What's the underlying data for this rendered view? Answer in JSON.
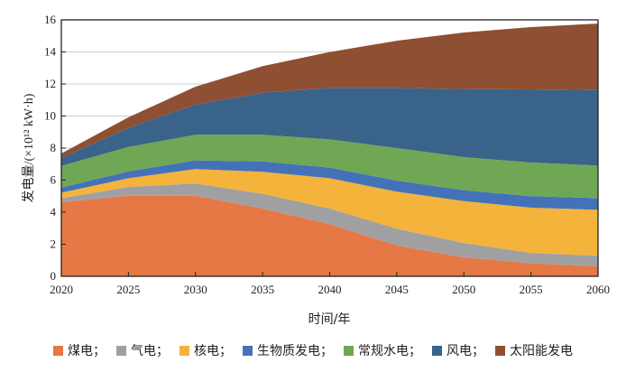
{
  "chart_data": {
    "type": "area",
    "stacked": true,
    "title": "",
    "xlabel": "时间/年",
    "ylabel": "发电量/(×10¹² kW·h)",
    "x": [
      2020,
      2025,
      2030,
      2035,
      2040,
      2045,
      2050,
      2055,
      2060
    ],
    "xlim": [
      2020,
      2060
    ],
    "ylim": [
      0,
      16
    ],
    "yticks": [
      0,
      2,
      4,
      6,
      8,
      10,
      12,
      14,
      16
    ],
    "grid": "horizontal",
    "legend_position": "bottom",
    "series": [
      {
        "name": "煤电；",
        "color": "#E57844",
        "values": [
          4.62,
          5.03,
          5.03,
          4.23,
          3.25,
          1.93,
          1.18,
          0.81,
          0.62
        ]
      },
      {
        "name": "气电；",
        "color": "#A0A0A2",
        "values": [
          0.24,
          0.55,
          0.76,
          0.92,
          0.98,
          1.04,
          0.9,
          0.65,
          0.66
        ]
      },
      {
        "name": "核电；",
        "color": "#F4B33A",
        "values": [
          0.36,
          0.54,
          0.9,
          1.37,
          1.89,
          2.31,
          2.61,
          2.82,
          2.87
        ]
      },
      {
        "name": "生物质发电；",
        "color": "#4472B8",
        "values": [
          0.32,
          0.43,
          0.54,
          0.65,
          0.66,
          0.69,
          0.68,
          0.72,
          0.73
        ]
      },
      {
        "name": "常规水电；",
        "color": "#6FA755",
        "values": [
          1.35,
          1.52,
          1.6,
          1.66,
          1.76,
          2.03,
          2.07,
          2.1,
          2.03
        ]
      },
      {
        "name": "风电；",
        "color": "#3A6389",
        "values": [
          0.49,
          1.19,
          1.89,
          2.62,
          3.22,
          3.76,
          4.24,
          4.56,
          4.71
        ]
      },
      {
        "name": "太阳能发电",
        "color": "#8F4F33",
        "values": [
          0.28,
          0.66,
          1.11,
          1.66,
          2.23,
          2.94,
          3.53,
          3.89,
          4.15
        ]
      }
    ]
  }
}
